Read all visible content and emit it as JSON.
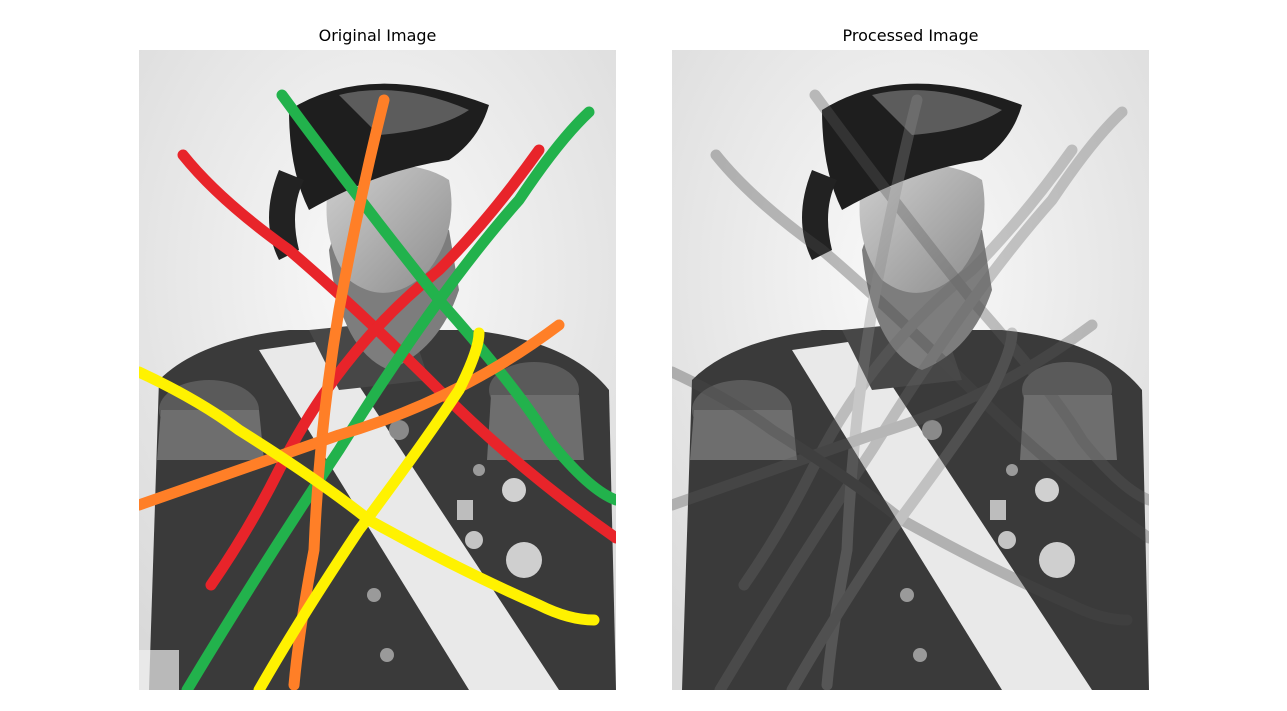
{
  "figure": {
    "panels": [
      {
        "title": "Original Image",
        "content": "portrait-with-colored-strokes"
      },
      {
        "title": "Processed Image",
        "content": "portrait-inpainted"
      }
    ],
    "stroke_colors": {
      "red": "#e8242a",
      "green": "#22b24c",
      "orange": "#ff7f27",
      "yellow": "#fff200"
    }
  }
}
